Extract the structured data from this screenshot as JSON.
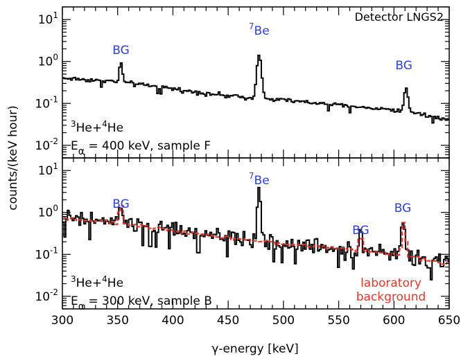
{
  "chart_data": [
    {
      "type": "line",
      "panel": "top",
      "yscale": "log",
      "xlim": [
        300,
        650
      ],
      "ylim": [
        0.005,
        20
      ],
      "y_ticks": [
        {
          "v": 0.01,
          "base": "10",
          "exp": "-2"
        },
        {
          "v": 0.1,
          "base": "10",
          "exp": "-1"
        },
        {
          "v": 1,
          "base": "10",
          "exp": "0"
        },
        {
          "v": 10,
          "base": "10",
          "exp": "1"
        }
      ],
      "annotations": {
        "detector": "Detector LNGS2",
        "reaction": {
          "s1": "3",
          "t1": "He+",
          "s2": "4",
          "t2": "He"
        },
        "condition": {
          "e": "E",
          "sub": "α",
          "rest": " = 400 keV, sample F"
        },
        "peaks": [
          {
            "label": "BG",
            "x": 353
          },
          {
            "sup": "7",
            "label": "Be",
            "x": 478
          },
          {
            "label": "BG",
            "x": 609
          }
        ]
      },
      "series": [
        {
          "color": "#000000",
          "baseline": [
            [
              300,
              0.4
            ],
            [
              350,
              0.33
            ],
            [
              400,
              0.22
            ],
            [
              450,
              0.15
            ],
            [
              480,
              0.13
            ],
            [
              500,
              0.12
            ],
            [
              550,
              0.09
            ],
            [
              600,
              0.07
            ],
            [
              620,
              0.06
            ],
            [
              650,
              0.04
            ]
          ],
          "peaks": [
            {
              "center": 353,
              "height": 0.55,
              "width": 1.2
            },
            {
              "center": 478,
              "height": 1.35,
              "width": 1.6
            },
            {
              "center": 611,
              "height": 0.19,
              "width": 1.3
            }
          ],
          "noise": 0.08,
          "step": 1.5
        }
      ]
    },
    {
      "type": "line",
      "panel": "bottom",
      "yscale": "log",
      "xlim": [
        300,
        650
      ],
      "ylim": [
        0.005,
        20
      ],
      "y_ticks": [
        {
          "v": 0.01,
          "base": "10",
          "exp": "-2"
        },
        {
          "v": 0.1,
          "base": "10",
          "exp": "-1"
        },
        {
          "v": 1,
          "base": "10",
          "exp": "0"
        },
        {
          "v": 10,
          "base": "10",
          "exp": "1"
        }
      ],
      "x_ticks": [
        300,
        350,
        400,
        450,
        500,
        550,
        600,
        650
      ],
      "annotations": {
        "reaction": {
          "s1": "3",
          "t1": "He+",
          "s2": "4",
          "t2": "He"
        },
        "condition": {
          "e": "E",
          "sub": "α",
          "rest": " = 300 keV, sample B"
        },
        "background_label": [
          "laboratory",
          "background"
        ],
        "peaks": [
          {
            "label": "BG",
            "x": 353
          },
          {
            "sup": "7",
            "label": "Be",
            "x": 478
          },
          {
            "label": "BG",
            "x": 570
          },
          {
            "label": "BG",
            "x": 608
          }
        ]
      },
      "series": [
        {
          "color": "#000000",
          "baseline": [
            [
              300,
              0.75
            ],
            [
              350,
              0.55
            ],
            [
              400,
              0.38
            ],
            [
              450,
              0.25
            ],
            [
              500,
              0.18
            ],
            [
              550,
              0.14
            ],
            [
              600,
              0.1
            ],
            [
              650,
              0.06
            ]
          ],
          "peaks": [
            {
              "center": 353,
              "height": 1.3,
              "width": 1.2
            },
            {
              "center": 478,
              "height": 3.3,
              "width": 1.2
            },
            {
              "center": 570,
              "height": 0.27,
              "width": 1.0
            },
            {
              "center": 608,
              "height": 0.65,
              "width": 1.2
            }
          ],
          "noise": 0.3,
          "step": 1.5
        },
        {
          "color": "#e8352b",
          "dashed": true,
          "baseline": [
            [
              300,
              0.75
            ],
            [
              350,
              0.55
            ],
            [
              400,
              0.38
            ],
            [
              450,
              0.25
            ],
            [
              500,
              0.18
            ],
            [
              550,
              0.14
            ],
            [
              600,
              0.1
            ],
            [
              650,
              0.06
            ]
          ],
          "peaks": [
            {
              "center": 353,
              "height": 1.1,
              "width": 1.3
            },
            {
              "center": 570,
              "height": 0.24,
              "width": 1.1
            },
            {
              "center": 609,
              "height": 0.45,
              "width": 1.3
            }
          ],
          "noise": 0.06,
          "step": 2.5
        }
      ]
    }
  ],
  "axes": {
    "ylabel": "counts/(keV hour)",
    "xlabel": "γ-energy [keV]"
  },
  "colors": {
    "annotation_blue": "#2a3fe0",
    "annotation_red": "#e8352b",
    "axis": "#000000"
  }
}
